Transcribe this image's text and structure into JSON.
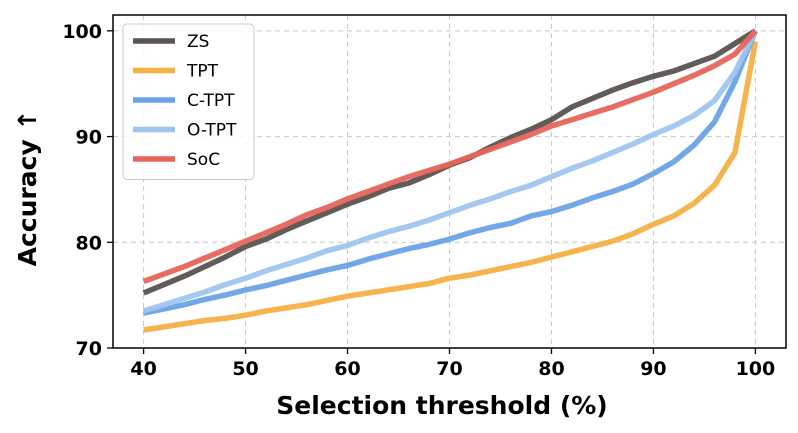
{
  "chart_data": {
    "type": "line",
    "title": "",
    "xlabel": "Selection threshold (%)",
    "ylabel": "Accuracy  ↑",
    "xlim": [
      37,
      103
    ],
    "ylim": [
      70,
      101.5
    ],
    "xticks": [
      40,
      50,
      60,
      70,
      80,
      90,
      100
    ],
    "yticks": [
      70,
      80,
      90,
      100
    ],
    "grid": true,
    "legend_position": "top-left",
    "x": [
      40,
      42,
      44,
      46,
      48,
      50,
      52,
      54,
      56,
      58,
      60,
      62,
      64,
      66,
      68,
      70,
      72,
      74,
      76,
      78,
      80,
      82,
      84,
      86,
      88,
      90,
      92,
      94,
      96,
      98,
      100
    ],
    "series": [
      {
        "name": "ZS",
        "color": "#5a5350",
        "values": [
          75.2,
          76.0,
          76.8,
          77.7,
          78.6,
          79.6,
          80.3,
          81.2,
          82.0,
          82.8,
          83.6,
          84.3,
          85.1,
          85.6,
          86.4,
          87.3,
          88.0,
          89.0,
          89.9,
          90.7,
          91.6,
          92.8,
          93.6,
          94.4,
          95.1,
          95.7,
          96.2,
          96.9,
          97.6,
          98.8,
          100.0
        ]
      },
      {
        "name": "TPT",
        "color": "#f5b042",
        "values": [
          71.7,
          72.0,
          72.3,
          72.6,
          72.8,
          73.1,
          73.5,
          73.8,
          74.1,
          74.5,
          74.9,
          75.2,
          75.5,
          75.8,
          76.1,
          76.6,
          76.9,
          77.3,
          77.7,
          78.1,
          78.6,
          79.1,
          79.6,
          80.1,
          80.8,
          81.7,
          82.5,
          83.7,
          85.4,
          88.5,
          99.0
        ]
      },
      {
        "name": "C-TPT",
        "color": "#6aa3e6",
        "values": [
          73.3,
          73.7,
          74.1,
          74.6,
          75.0,
          75.5,
          75.9,
          76.4,
          76.9,
          77.4,
          77.8,
          78.4,
          78.9,
          79.4,
          79.8,
          80.3,
          80.9,
          81.4,
          81.8,
          82.5,
          82.9,
          83.5,
          84.2,
          84.8,
          85.5,
          86.5,
          87.6,
          89.2,
          91.4,
          95.2,
          100.0
        ]
      },
      {
        "name": "O-TPT",
        "color": "#9fc5ee",
        "values": [
          73.5,
          74.1,
          74.7,
          75.3,
          76.0,
          76.6,
          77.3,
          77.9,
          78.5,
          79.2,
          79.7,
          80.4,
          81.0,
          81.5,
          82.1,
          82.8,
          83.5,
          84.1,
          84.8,
          85.4,
          86.2,
          87.0,
          87.7,
          88.5,
          89.3,
          90.2,
          91.0,
          92.0,
          93.4,
          96.1,
          100.0
        ]
      },
      {
        "name": "SoC",
        "color": "#e8645a",
        "values": [
          76.3,
          77.0,
          77.7,
          78.5,
          79.3,
          80.1,
          80.9,
          81.7,
          82.6,
          83.3,
          84.1,
          84.8,
          85.5,
          86.2,
          86.8,
          87.4,
          88.1,
          88.8,
          89.5,
          90.2,
          91.0,
          91.6,
          92.2,
          92.8,
          93.5,
          94.2,
          95.0,
          95.8,
          96.7,
          97.8,
          100.0
        ]
      }
    ]
  }
}
